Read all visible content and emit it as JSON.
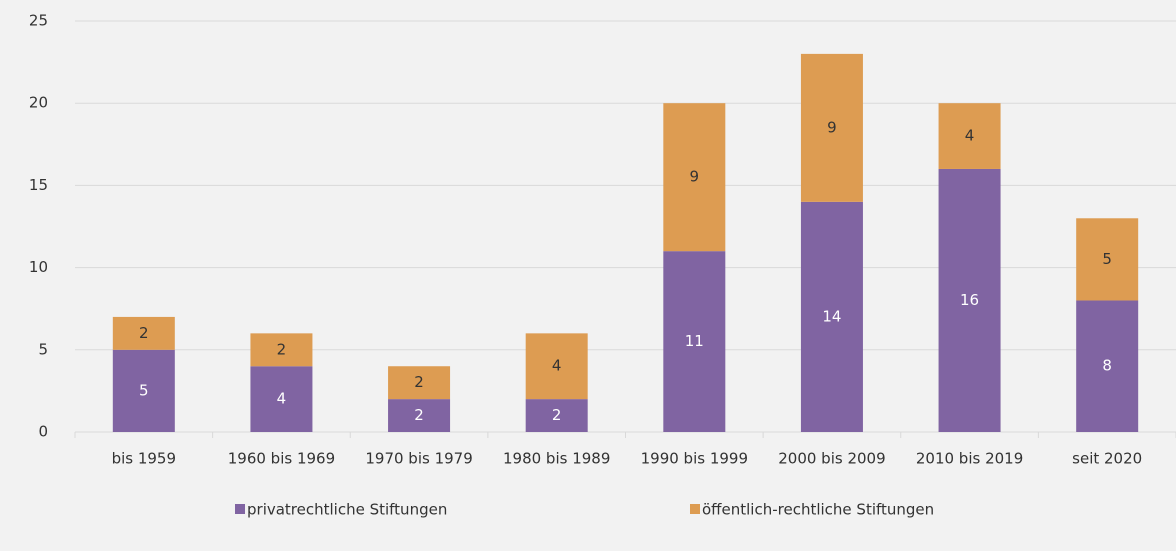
{
  "chart_data": {
    "type": "stacked_bar",
    "categories": [
      "bis 1959",
      "1960 bis 1969",
      "1970 bis 1979",
      "1980 bis 1989",
      "1990 bis 1999",
      "2000 bis 2009",
      "2010 bis 2019",
      "seit 2020"
    ],
    "series": [
      {
        "name": "privatrechtliche Stiftungen",
        "color": "#8064a2",
        "values": [
          5,
          4,
          2,
          2,
          11,
          14,
          16,
          8
        ]
      },
      {
        "name": "öffentlich-rechtliche Stiftungen",
        "color": "#dd9c52",
        "values": [
          2,
          2,
          2,
          4,
          9,
          9,
          4,
          5
        ]
      }
    ],
    "ylim": [
      0,
      25
    ],
    "yticks": [
      0,
      5,
      10,
      15,
      20,
      25
    ],
    "grid": true,
    "legend": "bottom"
  }
}
